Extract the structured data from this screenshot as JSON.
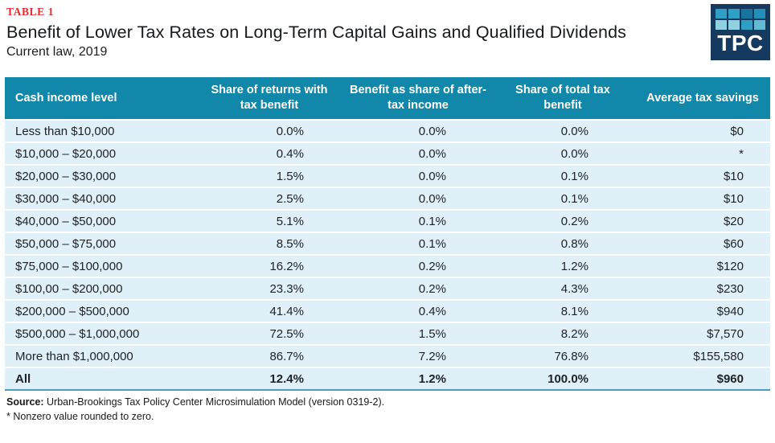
{
  "header": {
    "table_label": "TABLE 1",
    "title": "Benefit of Lower Tax Rates on Long-Term Capital Gains and Qualified Dividends",
    "subtitle": "Current law, 2019",
    "logo_text": "TPC"
  },
  "table": {
    "columns": [
      "Cash income level",
      "Share of returns with\ntax benefit",
      "Benefit as share of after-\ntax income",
      "Share of total tax\nbenefit",
      "Average tax savings"
    ],
    "rows": [
      [
        "Less than $10,000",
        "0.0%",
        "0.0%",
        "0.0%",
        "$0"
      ],
      [
        "$10,000 – $20,000",
        "0.4%",
        "0.0%",
        "0.0%",
        "*"
      ],
      [
        "$20,000 – $30,000",
        "1.5%",
        "0.0%",
        "0.1%",
        "$10"
      ],
      [
        "$30,000 – $40,000",
        "2.5%",
        "0.0%",
        "0.1%",
        "$10"
      ],
      [
        "$40,000 – $50,000",
        "5.1%",
        "0.1%",
        "0.2%",
        "$20"
      ],
      [
        "$50,000 – $75,000",
        "8.5%",
        "0.1%",
        "0.8%",
        "$60"
      ],
      [
        "$75,000 – $100,000",
        "16.2%",
        "0.2%",
        "1.2%",
        "$120"
      ],
      [
        "$100,00 – $200,000",
        "23.3%",
        "0.2%",
        "4.3%",
        "$230"
      ],
      [
        "$200,000 – $500,000",
        "41.4%",
        "0.4%",
        "8.1%",
        "$940"
      ],
      [
        "$500,000 – $1,000,000",
        "72.5%",
        "1.5%",
        "8.2%",
        "$7,570"
      ],
      [
        "More than $1,000,000",
        "86.7%",
        "7.2%",
        "76.8%",
        "$155,580"
      ],
      [
        "All",
        "12.4%",
        "1.2%",
        "100.0%",
        "$960"
      ]
    ]
  },
  "footer": {
    "source_label": "Source:",
    "source_text": "Urban-Brookings Tax Policy Center Microsimulation Model (version 0319-2).",
    "note": "* Nonzero value rounded to zero."
  },
  "colors": {
    "accent_red": "#E8272E",
    "header_teal": "#1187A9",
    "row_blue": "#DFF0F8",
    "logo_navy": "#16395F",
    "table_bottom_rule": "#4C9FBC",
    "header_text": "#FFFFFF",
    "body_text": "#202325"
  }
}
